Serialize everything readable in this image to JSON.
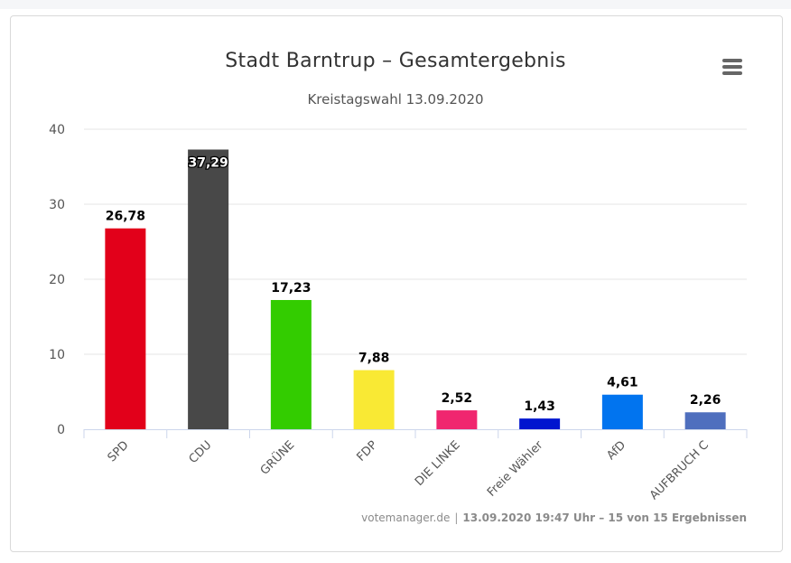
{
  "chart_data": {
    "type": "bar",
    "title": "Stadt Barntrup – Gesamtergebnis",
    "subtitle": "Kreistagswahl 13.09.2020",
    "categories": [
      "SPD",
      "CDU",
      "GRÜNE",
      "FDP",
      "DIE LINKE",
      "Freie Wähler",
      "AfD",
      "AUFBRUCH C"
    ],
    "values": [
      26.78,
      37.29,
      17.23,
      7.88,
      2.52,
      1.43,
      4.61,
      2.26
    ],
    "value_labels": [
      "26,78",
      "37,29",
      "17,23",
      "7,88",
      "2,52",
      "1,43",
      "4,61",
      "2,26"
    ],
    "colors": [
      "#e2001a",
      "#484848",
      "#33cc00",
      "#f9e934",
      "#f0266f",
      "#0015cf",
      "#0174ef",
      "#4f6fbe"
    ],
    "ylim": [
      0,
      40
    ],
    "yticks": [
      0,
      10,
      20,
      30,
      40
    ],
    "xlabel": "",
    "ylabel": "",
    "grid": true,
    "legend": "none"
  },
  "menu": {
    "icon": "hamburger-menu-icon"
  },
  "credits": {
    "source": "votemanager.de",
    "separator": "|",
    "status": "13.09.2020 19:47 Uhr – 15 von 15 Ergebnissen"
  }
}
